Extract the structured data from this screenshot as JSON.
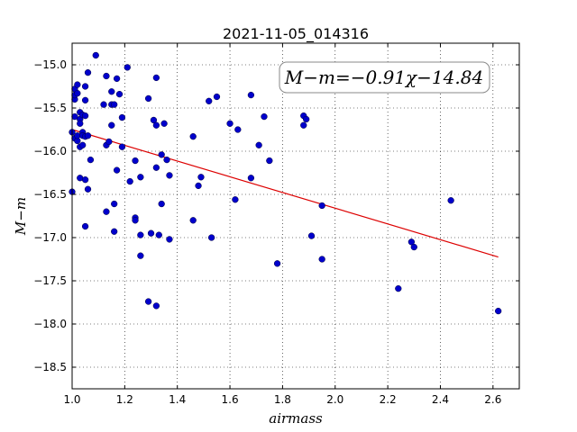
{
  "chart_data": {
    "type": "scatter",
    "title": "2021-11-05_014316",
    "xlabel": "airmass",
    "ylabel": "M−m",
    "xlim": [
      1.0,
      2.7
    ],
    "ylim": [
      -18.75,
      -14.75
    ],
    "y_inverted": true,
    "grid": true,
    "x_ticks": [
      1.0,
      1.2,
      1.4,
      1.6,
      1.8,
      2.0,
      2.2,
      2.4,
      2.6
    ],
    "x_tick_labels": [
      "1.0",
      "1.2",
      "1.4",
      "1.6",
      "1.8",
      "2.0",
      "2.2",
      "2.4",
      "2.6"
    ],
    "y_ticks": [
      -15.0,
      -15.5,
      -16.0,
      -16.5,
      -17.0,
      -17.5,
      -18.0,
      -18.5
    ],
    "y_tick_labels": [
      "−15.0",
      "−15.5",
      "−16.0",
      "−16.5",
      "−17.0",
      "−17.5",
      "−18.0",
      "−18.5"
    ],
    "annotation": "M−m=−0.91χ−14.84",
    "point_color": "#0000cc",
    "fit_color": "#dd0000",
    "fit_line": {
      "slope": -0.91,
      "intercept": -14.84,
      "x_range": [
        1.0,
        2.62
      ]
    },
    "points": [
      [
        1.0,
        -15.78
      ],
      [
        1.0,
        -16.47
      ],
      [
        1.01,
        -15.6
      ],
      [
        1.01,
        -15.85
      ],
      [
        1.01,
        -15.28
      ],
      [
        1.01,
        -15.4
      ],
      [
        1.01,
        -15.35
      ],
      [
        1.02,
        -15.23
      ],
      [
        1.02,
        -15.33
      ],
      [
        1.02,
        -15.88
      ],
      [
        1.02,
        -15.82
      ],
      [
        1.03,
        -15.55
      ],
      [
        1.03,
        -15.63
      ],
      [
        1.03,
        -15.68
      ],
      [
        1.03,
        -15.95
      ],
      [
        1.03,
        -16.31
      ],
      [
        1.04,
        -15.58
      ],
      [
        1.04,
        -15.78
      ],
      [
        1.04,
        -15.93
      ],
      [
        1.04,
        -15.82
      ],
      [
        1.05,
        -15.25
      ],
      [
        1.05,
        -15.41
      ],
      [
        1.05,
        -15.59
      ],
      [
        1.05,
        -15.83
      ],
      [
        1.05,
        -16.33
      ],
      [
        1.05,
        -16.87
      ],
      [
        1.06,
        -15.82
      ],
      [
        1.06,
        -15.09
      ],
      [
        1.06,
        -16.44
      ],
      [
        1.07,
        -16.1
      ],
      [
        1.09,
        -14.89
      ],
      [
        1.12,
        -15.46
      ],
      [
        1.13,
        -15.13
      ],
      [
        1.13,
        -15.93
      ],
      [
        1.13,
        -16.7
      ],
      [
        1.14,
        -15.89
      ],
      [
        1.15,
        -15.46
      ],
      [
        1.15,
        -15.7
      ],
      [
        1.15,
        -15.31
      ],
      [
        1.16,
        -15.46
      ],
      [
        1.16,
        -16.61
      ],
      [
        1.16,
        -16.93
      ],
      [
        1.17,
        -15.16
      ],
      [
        1.17,
        -16.22
      ],
      [
        1.18,
        -15.34
      ],
      [
        1.19,
        -15.61
      ],
      [
        1.19,
        -15.95
      ],
      [
        1.21,
        -15.03
      ],
      [
        1.22,
        -16.35
      ],
      [
        1.24,
        -16.77
      ],
      [
        1.24,
        -16.8
      ],
      [
        1.24,
        -16.11
      ],
      [
        1.26,
        -16.3
      ],
      [
        1.26,
        -16.97
      ],
      [
        1.26,
        -17.21
      ],
      [
        1.29,
        -15.39
      ],
      [
        1.29,
        -17.74
      ],
      [
        1.3,
        -16.95
      ],
      [
        1.31,
        -15.64
      ],
      [
        1.32,
        -15.7
      ],
      [
        1.32,
        -16.19
      ],
      [
        1.32,
        -15.15
      ],
      [
        1.32,
        -17.79
      ],
      [
        1.33,
        -16.97
      ],
      [
        1.34,
        -16.04
      ],
      [
        1.34,
        -16.61
      ],
      [
        1.35,
        -15.68
      ],
      [
        1.36,
        -16.1
      ],
      [
        1.37,
        -16.28
      ],
      [
        1.37,
        -17.02
      ],
      [
        1.46,
        -15.83
      ],
      [
        1.46,
        -16.8
      ],
      [
        1.48,
        -16.4
      ],
      [
        1.49,
        -16.3
      ],
      [
        1.52,
        -15.42
      ],
      [
        1.53,
        -17.0
      ],
      [
        1.55,
        -15.37
      ],
      [
        1.6,
        -15.68
      ],
      [
        1.62,
        -16.56
      ],
      [
        1.63,
        -15.75
      ],
      [
        1.68,
        -15.35
      ],
      [
        1.68,
        -16.31
      ],
      [
        1.71,
        -15.93
      ],
      [
        1.73,
        -15.6
      ],
      [
        1.75,
        -16.11
      ],
      [
        1.78,
        -17.3
      ],
      [
        1.88,
        -15.59
      ],
      [
        1.88,
        -15.7
      ],
      [
        1.89,
        -15.63
      ],
      [
        1.91,
        -16.98
      ],
      [
        1.95,
        -16.63
      ],
      [
        1.95,
        -17.25
      ],
      [
        2.24,
        -17.59
      ],
      [
        2.29,
        -17.05
      ],
      [
        2.3,
        -17.11
      ],
      [
        2.44,
        -16.57
      ],
      [
        2.62,
        -17.85
      ]
    ]
  }
}
